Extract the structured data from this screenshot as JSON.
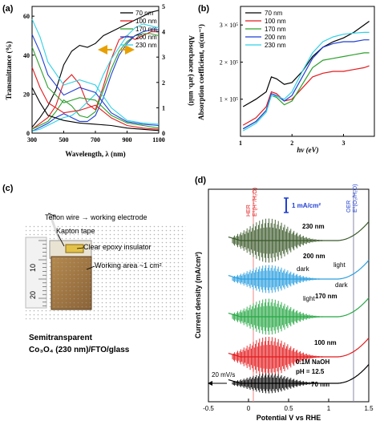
{
  "panels": {
    "a": {
      "letter": "(a)",
      "xlabel": "Wavelength, λ (nm)",
      "ylabel_left": "Transmittance (%)",
      "ylabel_right": "Absorbance (arb. unit)",
      "x_ticks": [
        "300",
        "500",
        "700",
        "900",
        "1100"
      ],
      "y_left_ticks": [
        "0",
        "20",
        "40",
        "60"
      ],
      "y_right_ticks": [
        "0",
        "1",
        "2",
        "3",
        "4",
        "5"
      ]
    },
    "b": {
      "letter": "(b)",
      "xlabel": "hν (eV)",
      "ylabel": "Absorption coefficient, α(cm⁻¹)",
      "x_ticks": [
        "1",
        "2",
        "3"
      ],
      "y_ticks": [
        "1 × 10⁵",
        "2 × 10⁵",
        "3 × 10⁵"
      ]
    },
    "c": {
      "letter": "(c)",
      "labels": [
        "Teflon wire → working electrode",
        "Kapton tape",
        "Clear epoxy insulator",
        "Working area ~1 cm²"
      ],
      "ruler_labels": [
        "10",
        "20"
      ],
      "caption_line1": "Semitransparent",
      "caption_line2": "Co₃O₄ (230 nm)/FTO/glass"
    },
    "d": {
      "letter": "(d)",
      "xlabel": "Potential V vs RHE",
      "ylabel": "Current density (mA/cm²)",
      "x_ticks": [
        "-0.5",
        "0",
        "0.5",
        "1",
        "1.5"
      ],
      "scale_bar": "1 mA/cm²",
      "her_label": "HER",
      "her_sub": "E⁰(H⁺/H₂O)",
      "oer_label": "OER",
      "oer_sub": "E⁰(O₂/H₂O)",
      "scan_rate": "20 mV/s",
      "electrolyte": "0.1M NaOH",
      "ph": "pH = 12.5",
      "dark": "dark",
      "light": "light"
    }
  },
  "colors": {
    "70 nm": "#000000",
    "100 nm": "#e41a1c",
    "170 nm": "#2ca02c",
    "200 nm": "#1f3fd4",
    "230 nm": "#2fd1e6",
    "d_230": "#3b5a2a",
    "d_200": "#2a9fe0",
    "d_170": "#27a845"
  },
  "chart_data": [
    {
      "type": "line",
      "panel": "a",
      "xlim": [
        300,
        1100
      ],
      "ylim_left": [
        0,
        65
      ],
      "ylim_right": [
        0,
        5
      ],
      "series": [
        {
          "name": "70 nm",
          "axis": "left",
          "x": [
            300,
            350,
            400,
            450,
            500,
            550,
            600,
            650,
            700,
            750,
            800,
            850,
            900,
            950,
            1000,
            1050,
            1100
          ],
          "y": [
            3,
            8,
            14,
            22,
            35,
            42,
            45,
            44,
            46,
            50,
            52,
            54,
            56,
            58,
            60,
            62,
            63
          ]
        },
        {
          "name": "100 nm",
          "axis": "left",
          "x": [
            300,
            350,
            400,
            450,
            500,
            550,
            600,
            650,
            700,
            750,
            800,
            850,
            900,
            950,
            1000,
            1050,
            1100
          ],
          "y": [
            2,
            5,
            8,
            14,
            26,
            30,
            25,
            15,
            12,
            24,
            38,
            48,
            50,
            48,
            50,
            52,
            52
          ]
        },
        {
          "name": "170 nm",
          "axis": "left",
          "x": [
            300,
            350,
            400,
            450,
            500,
            550,
            600,
            650,
            700,
            750,
            800,
            850,
            900,
            950,
            1000,
            1050,
            1100
          ],
          "y": [
            2,
            4,
            6,
            11,
            17,
            14,
            9,
            8,
            11,
            22,
            33,
            42,
            47,
            50,
            51,
            51,
            50
          ]
        },
        {
          "name": "200 nm",
          "axis": "left",
          "x": [
            300,
            350,
            400,
            450,
            500,
            550,
            600,
            650,
            700,
            750,
            800,
            850,
            900,
            950,
            1000,
            1050,
            1100
          ],
          "y": [
            1,
            3,
            5,
            8,
            10,
            8,
            6,
            6,
            9,
            18,
            30,
            40,
            46,
            50,
            52,
            53,
            53
          ]
        },
        {
          "name": "230 nm",
          "axis": "left",
          "x": [
            300,
            350,
            400,
            450,
            500,
            550,
            600,
            650,
            700,
            750,
            800,
            850,
            900,
            950,
            1000,
            1050,
            1100
          ],
          "y": [
            1,
            2,
            4,
            6,
            8,
            9,
            12,
            16,
            20,
            30,
            38,
            44,
            50,
            54,
            56,
            55,
            54
          ]
        },
        {
          "name": "70 nm abs",
          "axis": "right",
          "x": [
            300,
            350,
            400,
            500,
            600,
            700,
            800,
            900,
            1000,
            1100
          ],
          "y": [
            1.8,
            1.2,
            0.7,
            0.5,
            0.4,
            0.35,
            0.3,
            0.2,
            0.15,
            0.1
          ]
        },
        {
          "name": "100 nm abs",
          "axis": "right",
          "x": [
            300,
            350,
            400,
            500,
            600,
            700,
            800,
            900,
            1000,
            1100
          ],
          "y": [
            2.6,
            1.8,
            1.2,
            0.8,
            0.9,
            1.1,
            0.6,
            0.3,
            0.2,
            0.15
          ]
        },
        {
          "name": "170 nm abs",
          "axis": "right",
          "x": [
            300,
            350,
            400,
            500,
            600,
            700,
            800,
            900,
            1000,
            1100
          ],
          "y": [
            3.4,
            2.6,
            1.8,
            1.2,
            1.4,
            1.3,
            0.7,
            0.4,
            0.3,
            0.2
          ]
        },
        {
          "name": "200 nm abs",
          "axis": "right",
          "x": [
            300,
            350,
            400,
            500,
            600,
            700,
            800,
            900,
            1000,
            1100
          ],
          "y": [
            3.9,
            3.2,
            2.3,
            1.5,
            1.8,
            1.6,
            0.8,
            0.45,
            0.35,
            0.3
          ]
        },
        {
          "name": "230 nm abs",
          "axis": "right",
          "x": [
            300,
            350,
            400,
            500,
            600,
            700,
            800,
            900,
            1000,
            1100
          ],
          "y": [
            4.5,
            3.8,
            2.8,
            1.9,
            2.1,
            1.9,
            1.0,
            0.5,
            0.4,
            0.35
          ]
        }
      ]
    },
    {
      "type": "line",
      "panel": "b",
      "xlim": [
        1,
        3.6
      ],
      "ylim": [
        0,
        350000
      ],
      "series": [
        {
          "name": "70 nm",
          "x": [
            1.05,
            1.3,
            1.5,
            1.6,
            1.7,
            1.85,
            2.0,
            2.2,
            2.4,
            2.6,
            2.8,
            3.0,
            3.2,
            3.4,
            3.5
          ],
          "y": [
            80000,
            100000,
            120000,
            160000,
            155000,
            140000,
            145000,
            175000,
            215000,
            240000,
            255000,
            265000,
            280000,
            300000,
            310000
          ]
        },
        {
          "name": "100 nm",
          "x": [
            1.05,
            1.3,
            1.5,
            1.6,
            1.7,
            1.85,
            2.0,
            2.2,
            2.4,
            2.6,
            2.8,
            3.0,
            3.2,
            3.4,
            3.5
          ],
          "y": [
            30000,
            50000,
            80000,
            120000,
            115000,
            95000,
            100000,
            130000,
            160000,
            170000,
            175000,
            175000,
            180000,
            185000,
            190000
          ]
        },
        {
          "name": "170 nm",
          "x": [
            1.05,
            1.3,
            1.5,
            1.6,
            1.7,
            1.85,
            2.0,
            2.2,
            2.4,
            2.6,
            2.8,
            3.0,
            3.2,
            3.4,
            3.5
          ],
          "y": [
            20000,
            40000,
            70000,
            110000,
            105000,
            85000,
            95000,
            140000,
            185000,
            205000,
            210000,
            215000,
            220000,
            225000,
            225000
          ]
        },
        {
          "name": "200 nm",
          "x": [
            1.05,
            1.3,
            1.5,
            1.6,
            1.7,
            1.85,
            2.0,
            2.2,
            2.4,
            2.6,
            2.8,
            3.0,
            3.2,
            3.4,
            3.5
          ],
          "y": [
            20000,
            40000,
            70000,
            115000,
            110000,
            95000,
            110000,
            160000,
            210000,
            240000,
            250000,
            255000,
            255000,
            260000,
            260000
          ]
        },
        {
          "name": "230 nm",
          "x": [
            1.05,
            1.3,
            1.5,
            1.6,
            1.7,
            1.85,
            2.0,
            2.2,
            2.4,
            2.6,
            2.8,
            3.0,
            3.2,
            3.4,
            3.5
          ],
          "y": [
            15000,
            35000,
            65000,
            110000,
            108000,
            100000,
            120000,
            175000,
            225000,
            255000,
            268000,
            275000,
            278000,
            280000,
            280000
          ]
        }
      ]
    },
    {
      "type": "line",
      "panel": "d",
      "xlim": [
        -0.5,
        1.5
      ],
      "series": [
        {
          "name": "70 nm"
        },
        {
          "name": "100 nm"
        },
        {
          "name": "170 nm"
        },
        {
          "name": "200 nm"
        },
        {
          "name": "230 nm"
        }
      ]
    }
  ]
}
